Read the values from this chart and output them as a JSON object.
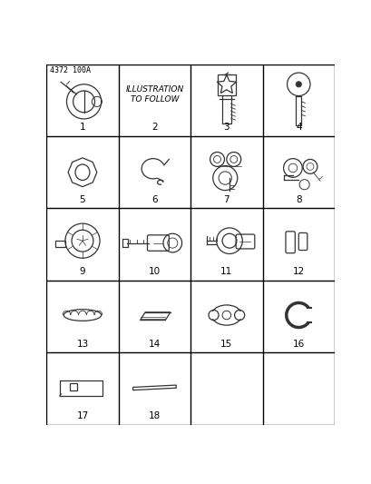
{
  "title_ref": "4372 100A",
  "background_color": "#ffffff",
  "grid_rows": 5,
  "grid_cols": 4,
  "cells": [
    {
      "id": 1,
      "row": 0,
      "col": 0,
      "label": "1",
      "type": "lock_cylinder_key"
    },
    {
      "id": 2,
      "row": 0,
      "col": 1,
      "label": "2",
      "type": "text_only",
      "text": "ILLUSTRATION\nTO FOLLOW"
    },
    {
      "id": 3,
      "row": 0,
      "col": 2,
      "label": "3",
      "type": "chrysler_key"
    },
    {
      "id": 4,
      "row": 0,
      "col": 3,
      "label": "4",
      "type": "round_key"
    },
    {
      "id": 5,
      "row": 1,
      "col": 0,
      "label": "5",
      "type": "hex_ring"
    },
    {
      "id": 6,
      "row": 1,
      "col": 1,
      "label": "6",
      "type": "spring_clip"
    },
    {
      "id": 7,
      "row": 1,
      "col": 2,
      "label": "7",
      "type": "lock_set"
    },
    {
      "id": 8,
      "row": 1,
      "col": 3,
      "label": "8",
      "type": "lock_cylinder_parts"
    },
    {
      "id": 9,
      "row": 2,
      "col": 0,
      "label": "9",
      "type": "ignition_lock"
    },
    {
      "id": 10,
      "row": 2,
      "col": 1,
      "label": "10",
      "type": "lock_cylinder_long"
    },
    {
      "id": 11,
      "row": 2,
      "col": 2,
      "label": "11",
      "type": "door_lock"
    },
    {
      "id": 12,
      "row": 2,
      "col": 3,
      "label": "12",
      "type": "pins"
    },
    {
      "id": 13,
      "row": 3,
      "col": 0,
      "label": "13",
      "type": "coil_spring"
    },
    {
      "id": 14,
      "row": 3,
      "col": 1,
      "label": "14",
      "type": "wedge_plate"
    },
    {
      "id": 15,
      "row": 3,
      "col": 2,
      "label": "15",
      "type": "retainer_clip"
    },
    {
      "id": 16,
      "row": 3,
      "col": 3,
      "label": "16",
      "type": "c_snap_ring"
    },
    {
      "id": 17,
      "row": 4,
      "col": 0,
      "label": "17",
      "type": "cover_plate"
    },
    {
      "id": 18,
      "row": 4,
      "col": 1,
      "label": "18",
      "type": "flat_strip"
    }
  ],
  "line_color": "#000000",
  "text_color": "#000000",
  "label_fontsize": 7.5,
  "ref_fontsize": 6,
  "lw": 0.9
}
